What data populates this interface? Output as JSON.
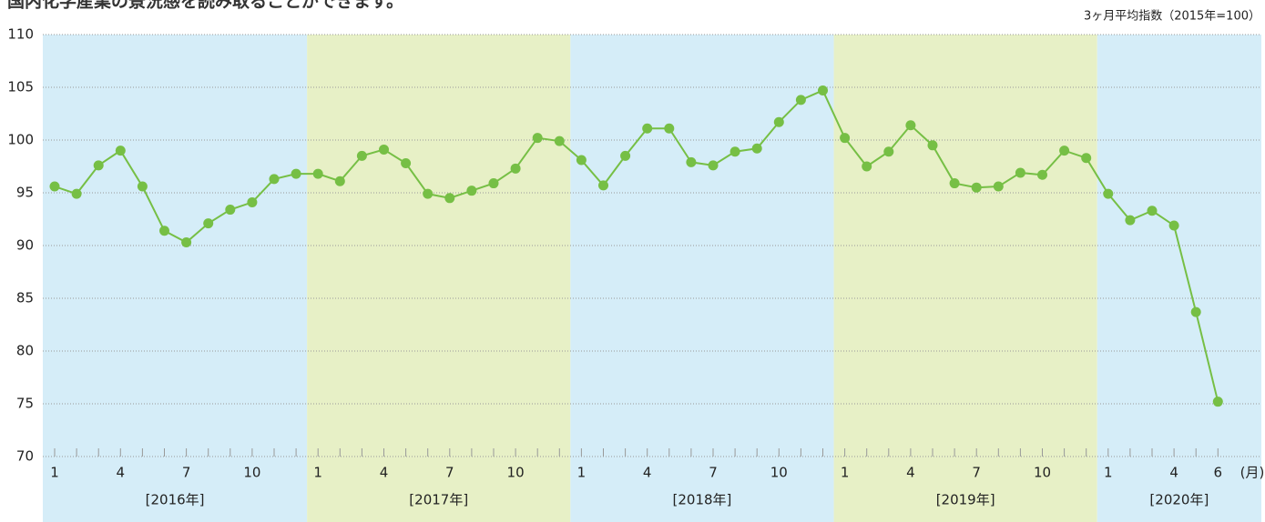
{
  "chart_data": {
    "type": "line",
    "title": "国内化学産業の景況感を読み取ることができます。",
    "subtitle": "3ヶ月平均指数（2015年=100）",
    "x_unit": "(月)",
    "groups": [
      {
        "label": "[2016年]",
        "categories": [
          "1",
          null,
          null,
          "4",
          null,
          null,
          "7",
          null,
          null,
          "10",
          null,
          null
        ]
      },
      {
        "label": "[2017年]",
        "categories": [
          "1",
          null,
          null,
          "4",
          null,
          null,
          "7",
          null,
          null,
          "10",
          null,
          null
        ]
      },
      {
        "label": "[2018年]",
        "categories": [
          "1",
          null,
          null,
          "4",
          null,
          null,
          "7",
          null,
          null,
          "10",
          null,
          null
        ]
      },
      {
        "label": "[2019年]",
        "categories": [
          "1",
          null,
          null,
          "4",
          null,
          null,
          "7",
          null,
          null,
          "10",
          null,
          null
        ]
      },
      {
        "label": "[2020年]",
        "categories": [
          "1",
          null,
          null,
          "4",
          null,
          "6"
        ]
      }
    ],
    "values": [
      95.6,
      94.9,
      97.6,
      99.0,
      95.6,
      91.4,
      90.3,
      92.1,
      93.4,
      94.1,
      96.3,
      96.8,
      96.8,
      96.1,
      98.5,
      99.1,
      97.8,
      94.9,
      94.5,
      95.2,
      95.9,
      97.3,
      100.2,
      99.9,
      98.1,
      95.7,
      98.5,
      101.1,
      101.1,
      97.9,
      97.6,
      98.9,
      99.2,
      101.7,
      103.8,
      104.7,
      100.2,
      97.5,
      98.9,
      101.4,
      99.5,
      95.9,
      95.5,
      95.6,
      96.9,
      96.7,
      99.0,
      98.3,
      94.9,
      92.4,
      93.3,
      91.9,
      83.7,
      75.2
    ],
    "color": "#76bf45",
    "band_colors": [
      "#d5edf8",
      "#e7f0c6"
    ],
    "ylim": [
      70,
      110
    ],
    "yticks": [
      70,
      75,
      80,
      85,
      90,
      95,
      100,
      105,
      110
    ],
    "grid": true
  }
}
